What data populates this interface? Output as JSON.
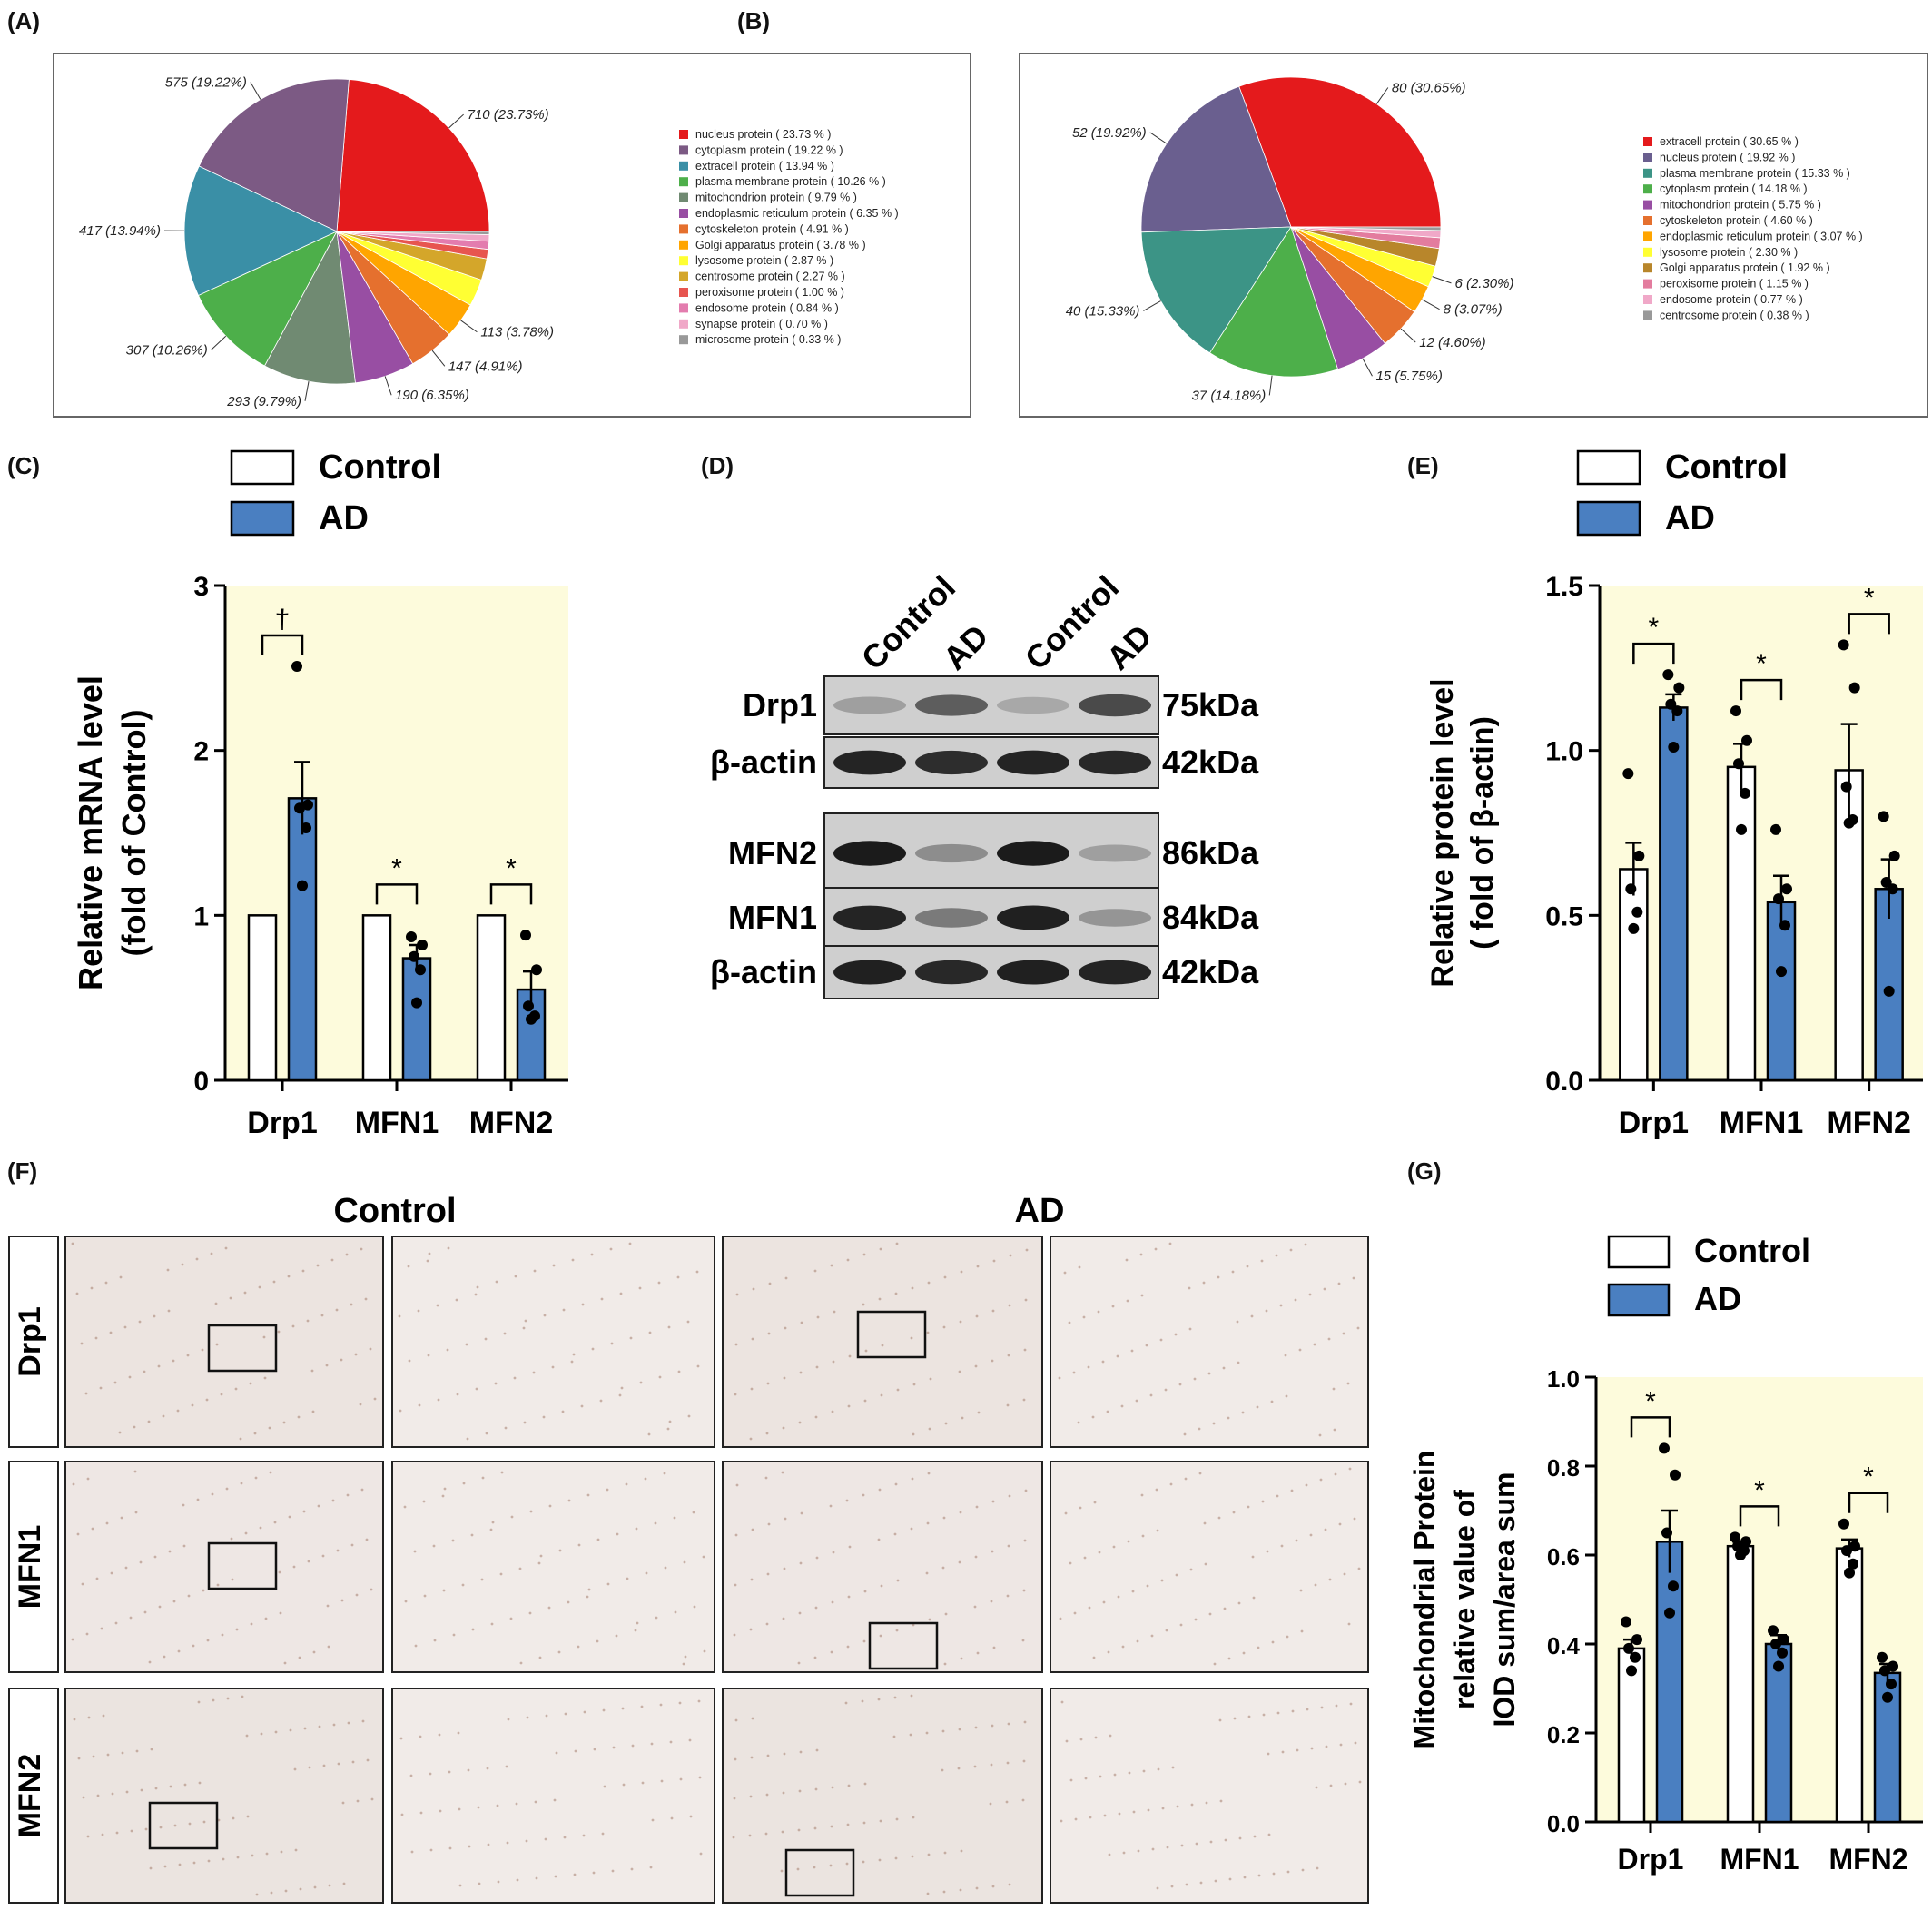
{
  "panels": {
    "A": "(A)",
    "B": "(B)",
    "C": "(C)",
    "D": "(D)",
    "E": "(E)",
    "F": "(F)",
    "G": "(G)"
  },
  "legend": {
    "control": "Control",
    "ad": "AD"
  },
  "colors": {
    "control": "#ffffff",
    "ad": "#4a7fc1",
    "plot_bg": "#fdfbdc"
  },
  "chart_data": [
    {
      "id": "A",
      "type": "pie",
      "slices": [
        {
          "name": "nucleus protein",
          "count": 710,
          "percent": 23.73,
          "label": "710 (23.73%)",
          "legend": "nucleus protein ( 23.73 % )",
          "color": "#e41a1c"
        },
        {
          "name": "cytoplasm protein",
          "count": 575,
          "percent": 19.22,
          "label": "575 (19.22%)",
          "legend": "cytoplasm protein ( 19.22 % )",
          "color": "#7c5a84"
        },
        {
          "name": "extracell protein",
          "count": 417,
          "percent": 13.94,
          "label": "417 (13.94%)",
          "legend": "extracell protein ( 13.94 % )",
          "color": "#3a8fa6"
        },
        {
          "name": "plasma membrane protein",
          "count": 307,
          "percent": 10.26,
          "label": "307 (10.26%)",
          "legend": "plasma membrane protein ( 10.26 % )",
          "color": "#4daf4a"
        },
        {
          "name": "mitochondrion protein",
          "count": 293,
          "percent": 9.79,
          "label": "293 (9.79%)",
          "legend": "mitochondrion protein ( 9.79 % )",
          "color": "#708a72"
        },
        {
          "name": "endoplasmic reticulum protein",
          "count": 190,
          "percent": 6.35,
          "label": "190 (6.35%)",
          "legend": "endoplasmic reticulum protein ( 6.35 % )",
          "color": "#984ea3"
        },
        {
          "name": "cytoskeleton protein",
          "count": 147,
          "percent": 4.91,
          "label": "147 (4.91%)",
          "legend": "cytoskeleton protein ( 4.91 % )",
          "color": "#e5702e"
        },
        {
          "name": "Golgi apparatus protein",
          "count": 113,
          "percent": 3.78,
          "label": "113 (3.78%)",
          "legend": "Golgi apparatus protein ( 3.78 % )",
          "color": "#ffa500"
        },
        {
          "name": "lysosome protein",
          "count": 86,
          "percent": 2.87,
          "label": "",
          "legend": "lysosome protein ( 2.87 % )",
          "color": "#ffff33"
        },
        {
          "name": "centrosome protein",
          "count": 68,
          "percent": 2.27,
          "label": "",
          "legend": "centrosome protein ( 2.27 % )",
          "color": "#d4a62a"
        },
        {
          "name": "peroxisome protein",
          "count": 30,
          "percent": 1.0,
          "label": "",
          "legend": "peroxisome protein ( 1.00 % )",
          "color": "#e7554f"
        },
        {
          "name": "endosome protein",
          "count": 25,
          "percent": 0.84,
          "label": "",
          "legend": "endosome protein ( 0.84 % )",
          "color": "#e37cae"
        },
        {
          "name": "synapse protein",
          "count": 21,
          "percent": 0.7,
          "label": "",
          "legend": "synapse protein ( 0.70 % )",
          "color": "#f0a8c8"
        },
        {
          "name": "microsome protein",
          "count": 10,
          "percent": 0.33,
          "label": "",
          "legend": "microsome protein ( 0.33 % )",
          "color": "#999999"
        }
      ]
    },
    {
      "id": "B",
      "type": "pie",
      "slices": [
        {
          "name": "extracell protein",
          "count": 80,
          "percent": 30.65,
          "label": "80 (30.65%)",
          "legend": "extracell protein ( 30.65 % )",
          "color": "#e41a1c"
        },
        {
          "name": "nucleus protein",
          "count": 52,
          "percent": 19.92,
          "label": "52 (19.92%)",
          "legend": "nucleus protein ( 19.92 % )",
          "color": "#6a5f8f"
        },
        {
          "name": "plasma membrane protein",
          "count": 40,
          "percent": 15.33,
          "label": "40 (15.33%)",
          "legend": "plasma membrane protein ( 15.33 % )",
          "color": "#3c9486"
        },
        {
          "name": "cytoplasm protein",
          "count": 37,
          "percent": 14.18,
          "label": "37 (14.18%)",
          "legend": "cytoplasm protein ( 14.18 % )",
          "color": "#4daf4a"
        },
        {
          "name": "mitochondrion protein",
          "count": 15,
          "percent": 5.75,
          "label": "15 (5.75%)",
          "legend": "mitochondrion protein ( 5.75 % )",
          "color": "#984ea3"
        },
        {
          "name": "cytoskeleton protein",
          "count": 12,
          "percent": 4.6,
          "label": "12 (4.60%)",
          "legend": "cytoskeleton protein ( 4.60 % )",
          "color": "#e5702e"
        },
        {
          "name": "endoplasmic reticulum protein",
          "count": 8,
          "percent": 3.07,
          "label": "8 (3.07%)",
          "legend": "endoplasmic reticulum protein ( 3.07 % )",
          "color": "#ffa500"
        },
        {
          "name": "lysosome protein",
          "count": 6,
          "percent": 2.3,
          "label": "6 (2.30%)",
          "legend": "lysosome protein ( 2.30 % )",
          "color": "#ffff33"
        },
        {
          "name": "Golgi apparatus protein",
          "count": 5,
          "percent": 1.92,
          "label": "",
          "legend": "Golgi apparatus protein ( 1.92 % )",
          "color": "#b8862b"
        },
        {
          "name": "peroxisome protein",
          "count": 3,
          "percent": 1.15,
          "label": "",
          "legend": "peroxisome protein ( 1.15 % )",
          "color": "#e37c9e"
        },
        {
          "name": "endosome protein",
          "count": 2,
          "percent": 0.77,
          "label": "",
          "legend": "endosome protein ( 0.77 % )",
          "color": "#f0a8c8"
        },
        {
          "name": "centrosome protein",
          "count": 1,
          "percent": 0.38,
          "label": "",
          "legend": "centrosome protein ( 0.38 % )",
          "color": "#999999"
        }
      ]
    },
    {
      "id": "C",
      "type": "bar",
      "categories": [
        "Drp1",
        "MFN1",
        "MFN2"
      ],
      "ylabel": [
        "Relative mRNA level",
        "(fold of Control)"
      ],
      "ylim": [
        0,
        3
      ],
      "yticks": [
        0,
        1,
        2,
        3
      ],
      "series": [
        {
          "name": "Control",
          "values": [
            1,
            1,
            1
          ],
          "sem": [
            0,
            0,
            0
          ],
          "points": [
            [],
            [],
            []
          ]
        },
        {
          "name": "AD",
          "values": [
            1.71,
            0.74,
            0.55
          ],
          "sem": [
            0.22,
            0.08,
            0.11
          ],
          "points": [
            [
              2.51,
              1.67,
              1.65,
              1.53,
              1.18
            ],
            [
              0.87,
              0.82,
              0.75,
              0.67,
              0.47
            ],
            [
              0.88,
              0.67,
              0.45,
              0.39,
              0.37
            ]
          ]
        }
      ],
      "significance": [
        "†",
        "*",
        "*"
      ]
    },
    {
      "id": "E",
      "type": "bar",
      "categories": [
        "Drp1",
        "MFN1",
        "MFN2"
      ],
      "ylabel": [
        "Relative protein level",
        "( fold of β-actin)"
      ],
      "ylim": [
        0,
        1.5
      ],
      "yticks": [
        0,
        0.5,
        1.0,
        1.5
      ],
      "yticklabels": [
        "0.0",
        "0.5",
        "1.0",
        "1.5"
      ],
      "series": [
        {
          "name": "Control",
          "values": [
            0.64,
            0.95,
            0.94
          ],
          "sem": [
            0.08,
            0.07,
            0.14
          ],
          "points": [
            [
              0.93,
              0.68,
              0.58,
              0.51,
              0.46
            ],
            [
              1.12,
              1.03,
              0.96,
              0.87,
              0.76
            ],
            [
              1.32,
              1.19,
              0.89,
              0.79,
              0.78
            ]
          ]
        },
        {
          "name": "AD",
          "values": [
            1.13,
            0.54,
            0.58
          ],
          "sem": [
            0.04,
            0.08,
            0.09
          ],
          "points": [
            [
              1.23,
              1.19,
              1.14,
              1.12,
              1.01
            ],
            [
              0.76,
              0.58,
              0.55,
              0.47,
              0.33
            ],
            [
              0.8,
              0.68,
              0.6,
              0.58,
              0.27
            ]
          ]
        }
      ],
      "significance": [
        "*",
        "*",
        "*"
      ]
    },
    {
      "id": "G",
      "type": "bar",
      "categories": [
        "Drp1",
        "MFN1",
        "MFN2"
      ],
      "ylabel": [
        "Mitochondrial Protein",
        "relative value of",
        "IOD sum/area sum"
      ],
      "ylim": [
        0,
        1.0
      ],
      "yticks": [
        0,
        0.2,
        0.4,
        0.6,
        0.8,
        1.0
      ],
      "yticklabels": [
        "0.0",
        "0.2",
        "0.4",
        "0.6",
        "0.8",
        "1.0"
      ],
      "series": [
        {
          "name": "Control",
          "values": [
            0.39,
            0.62,
            0.615
          ],
          "sem": [
            0.02,
            0.01,
            0.02
          ],
          "points": [
            [
              0.45,
              0.41,
              0.39,
              0.37,
              0.34
            ],
            [
              0.64,
              0.63,
              0.62,
              0.61,
              0.6
            ],
            [
              0.67,
              0.62,
              0.61,
              0.58,
              0.56
            ]
          ]
        },
        {
          "name": "AD",
          "values": [
            0.63,
            0.4,
            0.335
          ],
          "sem": [
            0.07,
            0.02,
            0.02
          ],
          "points": [
            [
              0.84,
              0.78,
              0.65,
              0.53,
              0.47
            ],
            [
              0.43,
              0.41,
              0.4,
              0.38,
              0.35
            ],
            [
              0.37,
              0.35,
              0.34,
              0.31,
              0.28
            ]
          ]
        }
      ],
      "significance": [
        "*",
        "*",
        "*"
      ]
    }
  ],
  "western_blot": {
    "lanes": [
      "Control",
      "AD",
      "Control",
      "AD"
    ],
    "rows": [
      {
        "protein": "Drp1",
        "size": "75kDa"
      },
      {
        "protein": "β-actin",
        "size": "42kDa"
      },
      {
        "protein": "MFN2",
        "size": "86kDa"
      },
      {
        "protein": "MFN1",
        "size": "84kDa"
      },
      {
        "protein": "β-actin",
        "size": "42kDa"
      }
    ]
  },
  "ihc": {
    "groups": [
      "Control",
      "AD"
    ],
    "rows": [
      "Drp1",
      "MFN1",
      "MFN2"
    ]
  }
}
